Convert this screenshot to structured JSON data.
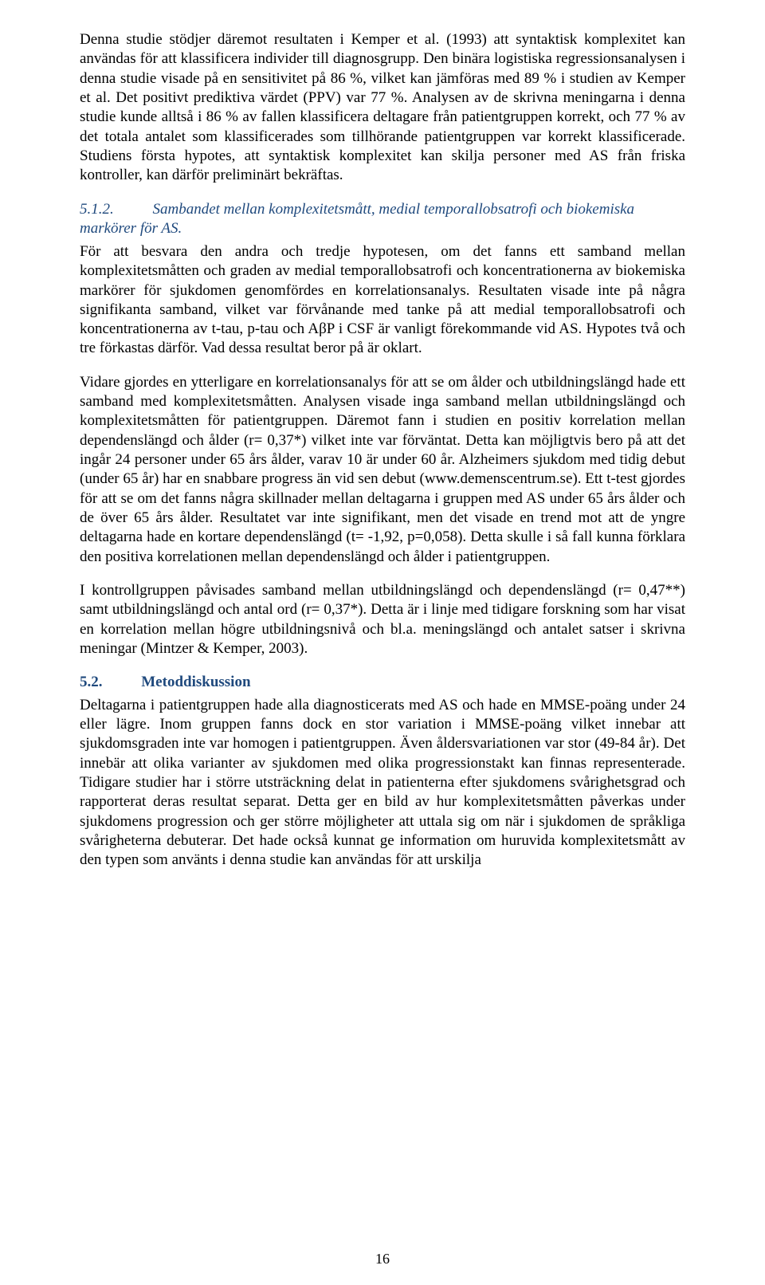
{
  "p1": "Denna studie stödjer däremot resultaten i Kemper et al. (1993) att syntaktisk komplexitet kan användas för att klassificera individer till diagnosgrupp. Den binära logistiska regressionsanalysen i denna studie visade på en sensitivitet på 86 %, vilket kan jämföras med 89 % i studien av Kemper et al. Det positivt prediktiva värdet (PPV) var 77 %. Analysen av de skrivna meningarna i denna studie kunde alltså i 86 % av fallen klassificera deltagare från patientgruppen korrekt, och 77 % av det totala antalet som klassificerades som tillhörande patientgruppen var korrekt klassificerade. Studiens första hypotes, att syntaktisk komplexitet kan skilja personer med AS från friska kontroller, kan därför preliminärt bekräftas.",
  "h512_num": "5.1.2.",
  "h512_title": "Sambandet mellan komplexitetsmått, medial temporallobsatrofi och biokemiska markörer för AS.",
  "p2": "För att besvara den andra och tredje hypotesen, om det fanns ett samband mellan komplexitetsmåtten och graden av medial temporallobsatrofi och koncentrationerna av biokemiska markörer för sjukdomen genomfördes en korrelationsanalys. Resultaten visade inte på några signifikanta samband, vilket var förvånande med tanke på att medial temporallobsatrofi och koncentrationerna av t-tau, p-tau och AβP i CSF är vanligt förekommande vid AS. Hypotes två och tre förkastas därför. Vad dessa resultat beror på är oklart.",
  "p3": "Vidare gjordes en ytterligare en korrelationsanalys för att se om ålder och utbildningslängd hade ett samband med komplexitetsmåtten. Analysen visade inga samband mellan utbildningslängd och komplexitetsmåtten för patientgruppen. Däremot fann i studien en positiv korrelation mellan dependenslängd och ålder (r= 0,37*) vilket inte var förväntat. Detta kan möjligtvis bero på att det ingår 24 personer under 65 års ålder, varav 10 är under 60 år. Alzheimers sjukdom med tidig debut (under 65 år) har en snabbare progress än vid sen debut (www.demenscentrum.se). Ett t-test gjordes för att se om det fanns några skillnader mellan deltagarna i gruppen med AS under 65 års ålder och de över 65 års ålder. Resultatet var inte signifikant, men det visade en trend mot att de yngre deltagarna hade en kortare dependenslängd (t= -1,92, p=0,058). Detta skulle i så fall kunna förklara den positiva korrelationen mellan dependenslängd och ålder i patientgruppen.",
  "p4": "I kontrollgruppen påvisades samband mellan utbildningslängd och dependenslängd (r= 0,47**) samt utbildningslängd och antal ord (r= 0,37*). Detta är i linje med tidigare forskning som har visat en korrelation mellan högre utbildningsnivå och bl.a. meningslängd och antalet satser i skrivna meningar (Mintzer & Kemper, 2003).",
  "h52_num": "5.2.",
  "h52_title": "Metoddiskussion",
  "p5": "Deltagarna i patientgruppen hade alla diagnosticerats med AS och hade en MMSE-poäng under 24 eller lägre. Inom gruppen fanns dock en stor variation i MMSE-poäng vilket innebar att sjukdomsgraden inte var homogen i patientgruppen. Även åldersvariationen var stor (49-84 år). Det innebär att olika varianter av sjukdomen med olika progressionstakt kan finnas representerade. Tidigare studier har i större utsträckning delat in patienterna efter sjukdomens svårighetsgrad och rapporterat deras resultat separat. Detta ger en bild av hur komplexitetsmåtten påverkas under sjukdomens progression och ger större möjligheter att uttala sig om när i sjukdomen de språkliga svårigheterna debuterar. Det hade också kunnat ge information om huruvida komplexitetsmått av den typen som använts i denna studie kan användas för att urskilja",
  "page_number": "16"
}
